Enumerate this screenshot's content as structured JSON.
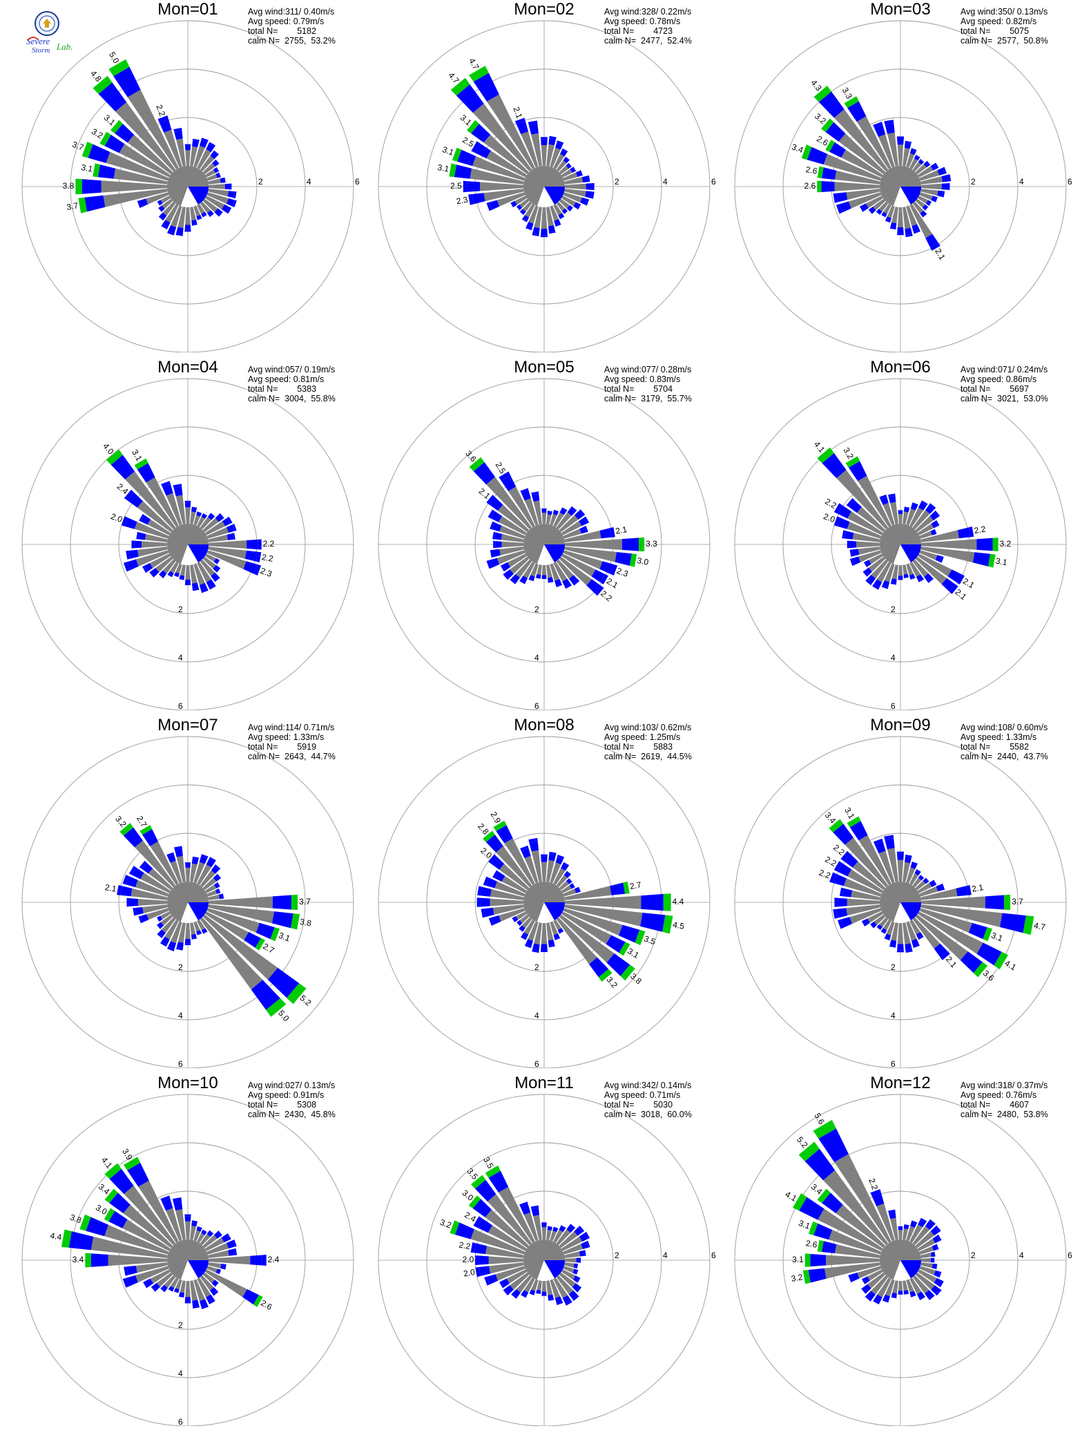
{
  "logo": {
    "text_top": "Severe",
    "text_mid": "Storm",
    "text_lab": "Lab."
  },
  "colors": {
    "gray": "#808080",
    "blue": "#0000FF",
    "green": "#00CC00",
    "orange": "#FF8C00",
    "red": "#FF0000",
    "ring": "#999999"
  },
  "chart_data": [
    {
      "type": "polar-bar",
      "title": "Mon=01",
      "stats": {
        "avg_wind_label": "Avg wind:",
        "avg_wind": "311/ 0.40m/s",
        "avg_speed_label": "Avg speed:",
        "avg_speed": "0.79m/s",
        "total_label": "total N=",
        "total": "5182",
        "calm_label": "calm N=",
        "calm": "2755,  53.2%"
      },
      "rings": [
        "2",
        "4",
        "6"
      ],
      "ring_label_side": "right",
      "labeled": [
        {
          "dir": 270,
          "value": 3.8,
          "label": "3.8"
        },
        {
          "dir": 280,
          "value": 3.1,
          "label": "3.1"
        },
        {
          "dir": 290,
          "value": 3.7,
          "label": "3.7"
        },
        {
          "dir": 300,
          "value": 3.2,
          "label": "3.2"
        },
        {
          "dir": 310,
          "value": 3.1,
          "label": "3.1"
        },
        {
          "dir": 320,
          "value": 4.8,
          "label": "4.8"
        },
        {
          "dir": 330,
          "value": 5.0,
          "label": "5.0"
        },
        {
          "dir": 340,
          "value": 2.2,
          "label": "2.2"
        },
        {
          "dir": 260,
          "value": 3.7,
          "label": "3.7"
        }
      ]
    },
    {
      "type": "polar-bar",
      "title": "Mon=02",
      "stats": {
        "avg_wind_label": "Avg wind:",
        "avg_wind": "328/ 0.22m/s",
        "avg_speed_label": "Avg speed:",
        "avg_speed": "0.78m/s",
        "total_label": "total N=",
        "total": "4723",
        "calm_label": "calm N=",
        "calm": "2477,  52.4%"
      },
      "rings": [
        "2",
        "4",
        "6"
      ],
      "ring_label_side": "right",
      "labeled": [
        {
          "dir": 260,
          "value": 2.3,
          "label": "2.3"
        },
        {
          "dir": 270,
          "value": 2.5,
          "label": "2.5"
        },
        {
          "dir": 280,
          "value": 3.1,
          "label": "3.1"
        },
        {
          "dir": 290,
          "value": 3.1,
          "label": "3.1"
        },
        {
          "dir": 300,
          "value": 2.5,
          "label": "2.5"
        },
        {
          "dir": 310,
          "value": 3.1,
          "label": "3.1"
        },
        {
          "dir": 320,
          "value": 4.7,
          "label": "4.7"
        },
        {
          "dir": 330,
          "value": 4.7,
          "label": "4.7"
        },
        {
          "dir": 340,
          "value": 2.1,
          "label": "2.1"
        }
      ]
    },
    {
      "type": "polar-bar",
      "title": "Mon=03",
      "stats": {
        "avg_wind_label": "Avg wind:",
        "avg_wind": "350/ 0.13m/s",
        "avg_speed_label": "Avg speed:",
        "avg_speed": "0.82m/s",
        "total_label": "total N=",
        "total": "5075",
        "calm_label": "calm N=",
        "calm": "2577,  50.8%"
      },
      "rings": [
        "2",
        "4",
        "6"
      ],
      "ring_label_side": "right",
      "labeled": [
        {
          "dir": 270,
          "value": 2.6,
          "label": "2.6"
        },
        {
          "dir": 280,
          "value": 2.6,
          "label": "2.6"
        },
        {
          "dir": 290,
          "value": 3.4,
          "label": "3.4"
        },
        {
          "dir": 300,
          "value": 2.6,
          "label": "2.6"
        },
        {
          "dir": 310,
          "value": 3.2,
          "label": "3.2"
        },
        {
          "dir": 320,
          "value": 4.3,
          "label": "4.3"
        },
        {
          "dir": 330,
          "value": 3.3,
          "label": "3.3"
        },
        {
          "dir": 150,
          "value": 2.1,
          "label": "2.1"
        }
      ]
    },
    {
      "type": "polar-bar",
      "title": "Mon=04",
      "stats": {
        "avg_wind_label": "Avg wind:",
        "avg_wind": "057/ 0.19m/s",
        "avg_speed_label": "Avg speed:",
        "avg_speed": "0.81m/s",
        "total_label": "total N=",
        "total": "5383",
        "calm_label": "calm N=",
        "calm": "3004,  55.8%"
      },
      "rings": [
        "2",
        "4",
        "6"
      ],
      "ring_label_side": "bottom",
      "labeled": [
        {
          "dir": 290,
          "value": 2.0,
          "label": "2.0"
        },
        {
          "dir": 310,
          "value": 2.4,
          "label": "2.4"
        },
        {
          "dir": 320,
          "value": 4.0,
          "label": "4.0"
        },
        {
          "dir": 330,
          "value": 3.1,
          "label": "3.1"
        },
        {
          "dir": 90,
          "value": 2.2,
          "label": "2.2"
        },
        {
          "dir": 100,
          "value": 2.2,
          "label": "2.2"
        },
        {
          "dir": 110,
          "value": 2.3,
          "label": "2.3"
        }
      ]
    },
    {
      "type": "polar-bar",
      "title": "Mon=05",
      "stats": {
        "avg_wind_label": "Avg wind:",
        "avg_wind": "077/ 0.28m/s",
        "avg_speed_label": "Avg speed:",
        "avg_speed": "0.83m/s",
        "total_label": "total N=",
        "total": "5704",
        "calm_label": "calm N=",
        "calm": "3179,  55.7%"
      },
      "rings": [
        "2",
        "4",
        "6"
      ],
      "ring_label_side": "bottom",
      "labeled": [
        {
          "dir": 310,
          "value": 2.1,
          "label": "2.1"
        },
        {
          "dir": 320,
          "value": 3.6,
          "label": "3.6"
        },
        {
          "dir": 330,
          "value": 2.5,
          "label": "2.5"
        },
        {
          "dir": 80,
          "value": 2.1,
          "label": "2.1"
        },
        {
          "dir": 90,
          "value": 3.3,
          "label": "3.3"
        },
        {
          "dir": 100,
          "value": 3.0,
          "label": "3.0"
        },
        {
          "dir": 110,
          "value": 2.3,
          "label": "2.3"
        },
        {
          "dir": 120,
          "value": 2.1,
          "label": "2.1"
        },
        {
          "dir": 130,
          "value": 2.2,
          "label": "2.2"
        }
      ]
    },
    {
      "type": "polar-bar",
      "title": "Mon=06",
      "stats": {
        "avg_wind_label": "Avg wind:",
        "avg_wind": "071/ 0.24m/s",
        "avg_speed_label": "Avg speed:",
        "avg_speed": "0.86m/s",
        "total_label": "total N=",
        "total": "5697",
        "calm_label": "calm N=",
        "calm": "3021,  53.0%"
      },
      "rings": [
        "2",
        "4",
        "6"
      ],
      "ring_label_side": "bottom",
      "labeled": [
        {
          "dir": 290,
          "value": 2.0,
          "label": "2.0"
        },
        {
          "dir": 300,
          "value": 2.2,
          "label": "2.2"
        },
        {
          "dir": 320,
          "value": 4.1,
          "label": "4.1"
        },
        {
          "dir": 330,
          "value": 3.2,
          "label": "3.2"
        },
        {
          "dir": 80,
          "value": 2.2,
          "label": "2.2"
        },
        {
          "dir": 90,
          "value": 3.2,
          "label": "3.2"
        },
        {
          "dir": 100,
          "value": 3.1,
          "label": "3.1"
        },
        {
          "dir": 120,
          "value": 2.1,
          "label": "2.1"
        },
        {
          "dir": 130,
          "value": 2.1,
          "label": "2.1"
        }
      ]
    },
    {
      "type": "polar-bar",
      "title": "Mon=07",
      "stats": {
        "avg_wind_label": "Avg wind:",
        "avg_wind": "114/ 0.71m/s",
        "avg_speed_label": "Avg speed:",
        "avg_speed": "1.33m/s",
        "total_label": "total N=",
        "total": "5919",
        "calm_label": "calm N=",
        "calm": "2643,  44.7%"
      },
      "rings": [
        "2",
        "4",
        "6"
      ],
      "ring_label_side": "bottom",
      "labeled": [
        {
          "dir": 280,
          "value": 2.1,
          "label": "2.1"
        },
        {
          "dir": 320,
          "value": 3.2,
          "label": "3.2"
        },
        {
          "dir": 330,
          "value": 2.7,
          "label": "2.7"
        },
        {
          "dir": 90,
          "value": 3.7,
          "label": "3.7"
        },
        {
          "dir": 100,
          "value": 3.8,
          "label": "3.8"
        },
        {
          "dir": 110,
          "value": 3.1,
          "label": "3.1"
        },
        {
          "dir": 120,
          "value": 2.7,
          "label": "2.7"
        },
        {
          "dir": 130,
          "value": 5.2,
          "label": "5.2"
        },
        {
          "dir": 140,
          "value": 5.0,
          "label": "5.0"
        }
      ]
    },
    {
      "type": "polar-bar",
      "title": "Mon=08",
      "stats": {
        "avg_wind_label": "Avg wind:",
        "avg_wind": "103/ 0.62m/s",
        "avg_speed_label": "Avg speed:",
        "avg_speed": "1.25m/s",
        "total_label": "total N=",
        "total": "5883",
        "calm_label": "calm N=",
        "calm": "2619,  44.5%"
      },
      "rings": [
        "2",
        "4",
        "6"
      ],
      "ring_label_side": "bottom",
      "labeled": [
        {
          "dir": 310,
          "value": 2.0,
          "label": "2.0"
        },
        {
          "dir": 320,
          "value": 2.8,
          "label": "2.8"
        },
        {
          "dir": 330,
          "value": 2.9,
          "label": "2.9"
        },
        {
          "dir": 80,
          "value": 2.7,
          "label": "2.7"
        },
        {
          "dir": 90,
          "value": 4.4,
          "label": "4.4"
        },
        {
          "dir": 100,
          "value": 4.5,
          "label": "4.5"
        },
        {
          "dir": 110,
          "value": 3.5,
          "label": "3.5"
        },
        {
          "dir": 120,
          "value": 3.1,
          "label": "3.1"
        },
        {
          "dir": 130,
          "value": 3.8,
          "label": "3.8"
        },
        {
          "dir": 140,
          "value": 3.2,
          "label": "3.2"
        }
      ]
    },
    {
      "type": "polar-bar",
      "title": "Mon=09",
      "stats": {
        "avg_wind_label": "Avg wind:",
        "avg_wind": "108/ 0.60m/s",
        "avg_speed_label": "Avg speed:",
        "avg_speed": "1.33m/s",
        "total_label": "total N=",
        "total": "5582",
        "calm_label": "calm N=",
        "calm": "2440,  43.7%"
      },
      "rings": [
        "2",
        "4",
        "6"
      ],
      "ring_label_side": "bottom",
      "labeled": [
        {
          "dir": 290,
          "value": 2.2,
          "label": "2.2"
        },
        {
          "dir": 300,
          "value": 2.2,
          "label": "2.2"
        },
        {
          "dir": 310,
          "value": 2.2,
          "label": "2.2"
        },
        {
          "dir": 320,
          "value": 3.4,
          "label": "3.4"
        },
        {
          "dir": 330,
          "value": 3.1,
          "label": "3.1"
        },
        {
          "dir": 80,
          "value": 2.1,
          "label": "2.1"
        },
        {
          "dir": 90,
          "value": 3.7,
          "label": "3.7"
        },
        {
          "dir": 100,
          "value": 4.7,
          "label": "4.7"
        },
        {
          "dir": 110,
          "value": 3.1,
          "label": "3.1"
        },
        {
          "dir": 120,
          "value": 4.1,
          "label": "4.1"
        },
        {
          "dir": 130,
          "value": 3.6,
          "label": "3.6"
        },
        {
          "dir": 140,
          "value": 2.1,
          "label": "2.1"
        }
      ]
    },
    {
      "type": "polar-bar",
      "title": "Mon=10",
      "stats": {
        "avg_wind_label": "Avg wind:",
        "avg_wind": "027/ 0.13m/s",
        "avg_speed_label": "Avg speed:",
        "avg_speed": "0.91m/s",
        "total_label": "total N=",
        "total": "5308",
        "calm_label": "calm N=",
        "calm": "2430,  45.8%"
      },
      "rings": [
        "2",
        "4",
        "6"
      ],
      "ring_label_side": "bottom",
      "labeled": [
        {
          "dir": 270,
          "value": 3.4,
          "label": "3.4"
        },
        {
          "dir": 280,
          "value": 4.4,
          "label": "4.4"
        },
        {
          "dir": 290,
          "value": 3.8,
          "label": "3.8"
        },
        {
          "dir": 300,
          "value": 3.0,
          "label": "3.0"
        },
        {
          "dir": 310,
          "value": 3.4,
          "label": "3.4"
        },
        {
          "dir": 320,
          "value": 4.1,
          "label": "4.1"
        },
        {
          "dir": 330,
          "value": 3.9,
          "label": "3.9"
        },
        {
          "dir": 90,
          "value": 2.4,
          "label": "2.4"
        },
        {
          "dir": 120,
          "value": 2.6,
          "label": "2.6"
        }
      ]
    },
    {
      "type": "polar-bar",
      "title": "Mon=11",
      "stats": {
        "avg_wind_label": "Avg wind:",
        "avg_wind": "342/ 0.14m/s",
        "avg_speed_label": "Avg speed:",
        "avg_speed": "0.71m/s",
        "total_label": "total N=",
        "total": "5030",
        "calm_label": "calm N=",
        "calm": "3018,  60.0%"
      },
      "rings": [
        "2",
        "4",
        "6"
      ],
      "ring_label_side": "right",
      "labeled": [
        {
          "dir": 260,
          "value": 2.0,
          "label": "2.0"
        },
        {
          "dir": 270,
          "value": 2.0,
          "label": "2.0"
        },
        {
          "dir": 280,
          "value": 2.2,
          "label": "2.2"
        },
        {
          "dir": 290,
          "value": 3.2,
          "label": "3.2"
        },
        {
          "dir": 300,
          "value": 2.4,
          "label": "2.4"
        },
        {
          "dir": 310,
          "value": 3.0,
          "label": "3.0"
        },
        {
          "dir": 320,
          "value": 3.5,
          "label": "3.5"
        },
        {
          "dir": 330,
          "value": 3.5,
          "label": "3.5"
        }
      ]
    },
    {
      "type": "polar-bar",
      "title": "Mon=12",
      "stats": {
        "avg_wind_label": "Avg wind:",
        "avg_wind": "318/ 0.37m/s",
        "avg_speed_label": "Avg speed:",
        "avg_speed": "0.76m/s",
        "total_label": "total N=",
        "total": "4607",
        "calm_label": "calm N=",
        "calm": "2480,  53.8%"
      },
      "rings": [
        "2",
        "4",
        "6"
      ],
      "ring_label_side": "right",
      "labeled": [
        {
          "dir": 260,
          "value": 3.2,
          "label": "3.2"
        },
        {
          "dir": 270,
          "value": 3.1,
          "label": "3.1"
        },
        {
          "dir": 280,
          "value": 2.6,
          "label": "2.6"
        },
        {
          "dir": 290,
          "value": 3.1,
          "label": "3.1"
        },
        {
          "dir": 300,
          "value": 4.1,
          "label": "4.1"
        },
        {
          "dir": 310,
          "value": 3.4,
          "label": "3.4"
        },
        {
          "dir": 320,
          "value": 5.2,
          "label": "5.2"
        },
        {
          "dir": 330,
          "value": 5.6,
          "label": "5.6"
        },
        {
          "dir": 340,
          "value": 2.2,
          "label": "2.2"
        }
      ]
    }
  ]
}
